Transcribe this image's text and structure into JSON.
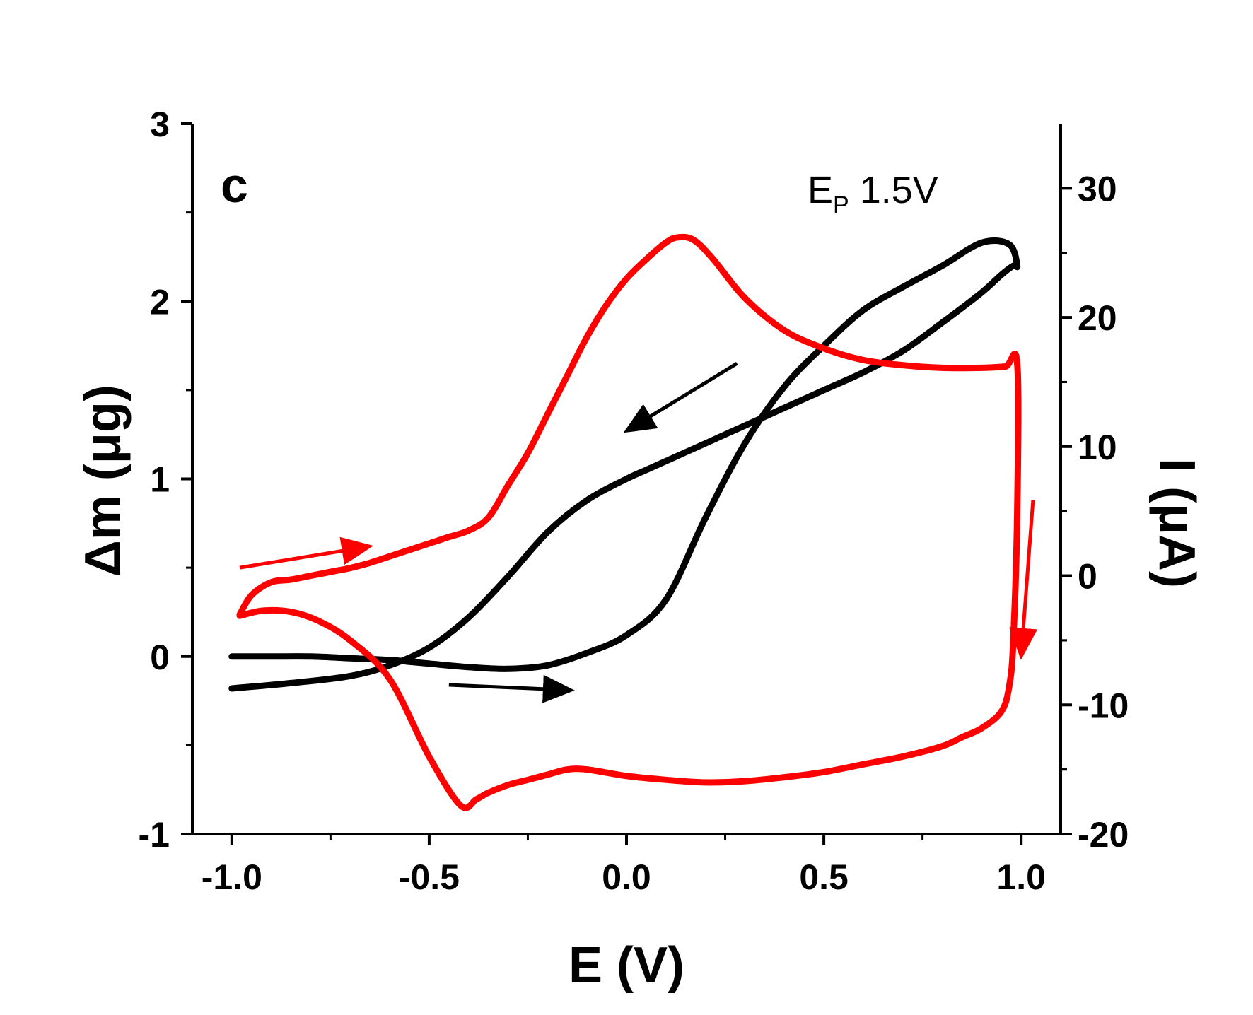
{
  "chart_data": {
    "type": "line",
    "panel_label": "c",
    "annotation": {
      "main": "E",
      "subscript": "P",
      "value": " 1.5V"
    },
    "xlabel": "E (V)",
    "ylabel_left": "Δm (μg)",
    "ylabel_right": "I (μA)",
    "xlim": [
      -1.1,
      1.1
    ],
    "ylim_left": [
      -1,
      3
    ],
    "ylim_right": [
      -20,
      35
    ],
    "x_ticks": [
      -1.0,
      -0.5,
      0.0,
      0.5,
      1.0
    ],
    "x_tick_labels": [
      "-1.0",
      "-0.5",
      "0.0",
      "0.5",
      "1.0"
    ],
    "y_left_ticks": [
      -1,
      0,
      1,
      2,
      3
    ],
    "y_left_tick_labels": [
      "-1",
      "0",
      "1",
      "2",
      "3"
    ],
    "y_right_ticks": [
      -20,
      -10,
      0,
      10,
      20,
      30
    ],
    "y_right_tick_labels": [
      "-20",
      "-10",
      "0",
      "10",
      "20",
      "30"
    ],
    "grid": false,
    "colors": {
      "mass": "#000000",
      "current": "#ff0000"
    },
    "series": [
      {
        "name": "Δm",
        "axis": "left",
        "color": "#000000",
        "x": [
          -1.0,
          -0.85,
          -0.7,
          -0.6,
          -0.5,
          -0.4,
          -0.3,
          -0.2,
          -0.1,
          0.0,
          0.05,
          0.1,
          0.15,
          0.2,
          0.25,
          0.3,
          0.35,
          0.4,
          0.5,
          0.6,
          0.7,
          0.8,
          0.9,
          0.95,
          0.98,
          0.99,
          0.97,
          0.9,
          0.8,
          0.7,
          0.6,
          0.5,
          0.4,
          0.3,
          0.2,
          0.1,
          0.0,
          -0.1,
          -0.2,
          -0.3,
          -0.4,
          -0.5,
          -0.55,
          -0.6,
          -0.7,
          -0.8,
          -0.9,
          -1.0
        ],
        "y": [
          -0.18,
          -0.15,
          -0.11,
          -0.05,
          0.05,
          0.22,
          0.45,
          0.7,
          0.88,
          1.0,
          1.05,
          1.1,
          1.15,
          1.2,
          1.25,
          1.3,
          1.35,
          1.4,
          1.5,
          1.6,
          1.72,
          1.88,
          2.05,
          2.15,
          2.2,
          2.2,
          2.32,
          2.33,
          2.2,
          2.08,
          1.95,
          1.75,
          1.52,
          1.2,
          0.78,
          0.32,
          0.12,
          0.02,
          -0.05,
          -0.07,
          -0.06,
          -0.04,
          -0.03,
          -0.02,
          -0.01,
          0.0,
          0.0,
          0.0
        ]
      },
      {
        "name": "I",
        "axis": "right",
        "color": "#ff0000",
        "x": [
          -0.98,
          -0.95,
          -0.9,
          -0.85,
          -0.8,
          -0.75,
          -0.7,
          -0.65,
          -0.6,
          -0.55,
          -0.5,
          -0.45,
          -0.4,
          -0.35,
          -0.3,
          -0.25,
          -0.2,
          -0.15,
          -0.1,
          -0.05,
          0.0,
          0.05,
          0.1,
          0.13,
          0.17,
          0.22,
          0.3,
          0.4,
          0.5,
          0.6,
          0.7,
          0.8,
          0.9,
          0.96,
          0.99,
          0.99,
          0.98,
          0.97,
          0.95,
          0.9,
          0.85,
          0.8,
          0.7,
          0.6,
          0.5,
          0.4,
          0.3,
          0.2,
          0.1,
          0.0,
          -0.1,
          -0.15,
          -0.2,
          -0.25,
          -0.3,
          -0.35,
          -0.38,
          -0.42,
          -0.5,
          -0.6,
          -0.7,
          -0.78,
          -0.85,
          -0.92,
          -0.98
        ],
        "y": [
          -3.0,
          -1.5,
          -0.5,
          -0.3,
          0.0,
          0.3,
          0.6,
          1.0,
          1.5,
          2.0,
          2.5,
          3.0,
          3.5,
          4.5,
          7.0,
          9.5,
          12.5,
          15.5,
          18.5,
          21.0,
          23.0,
          24.5,
          25.8,
          26.2,
          26.0,
          24.5,
          21.5,
          19.0,
          17.6,
          16.7,
          16.3,
          16.1,
          16.1,
          16.2,
          16.4,
          5.0,
          -5.0,
          -8.5,
          -10.5,
          -11.8,
          -12.5,
          -13.2,
          -14.0,
          -14.6,
          -15.2,
          -15.6,
          -15.9,
          -16.0,
          -15.8,
          -15.5,
          -15.0,
          -15.0,
          -15.4,
          -15.8,
          -16.2,
          -16.8,
          -17.3,
          -17.8,
          -14.0,
          -8.0,
          -5.0,
          -3.5,
          -2.8,
          -2.7,
          -3.1
        ]
      }
    ],
    "arrows": [
      {
        "series": "I",
        "x1": -0.98,
        "y1": 0.5,
        "x2": -0.65,
        "y2": 0.62
      },
      {
        "series": "I",
        "x1": 1.03,
        "y1": 0.88,
        "x2": 1.0,
        "y2": 0.0
      },
      {
        "series": "Δm",
        "x1": 0.28,
        "y1": 1.65,
        "x2": 0.0,
        "y2": 1.27
      },
      {
        "series": "Δm",
        "x1": -0.45,
        "y1": -0.16,
        "x2": -0.14,
        "y2": -0.19
      }
    ]
  }
}
